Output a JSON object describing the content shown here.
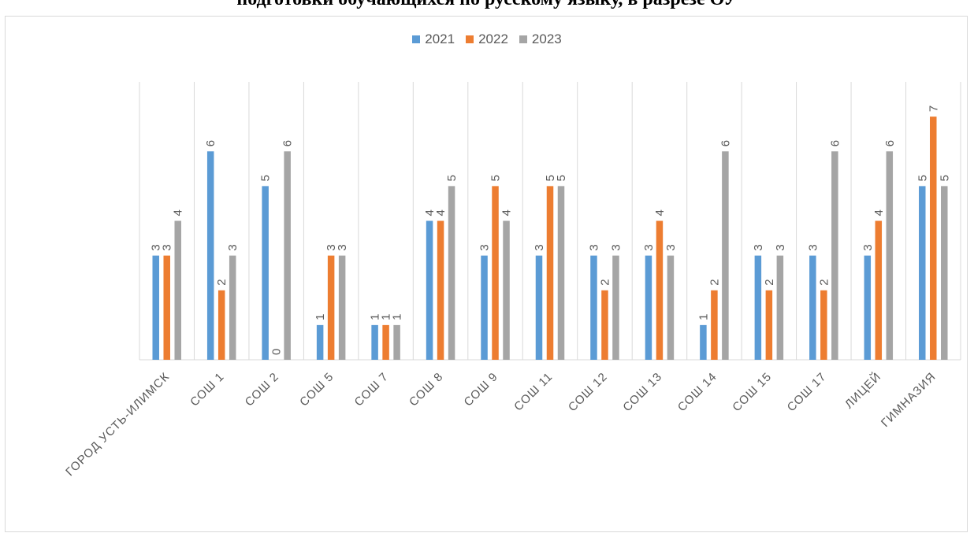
{
  "title": "подготовки обучающихся по русскому языку, в разрезе ОУ",
  "chart_data": {
    "type": "bar",
    "categories": [
      "ГОРОД УСТЬ-ИЛИМСК",
      "СОШ 1",
      "СОШ 2",
      "СОШ 5",
      "СОШ 7",
      "СОШ 8",
      "СОШ 9",
      "СОШ 11",
      "СОШ 12",
      "СОШ 13",
      "СОШ 14",
      "СОШ 15",
      "СОШ 17",
      "ЛИЦЕЙ",
      "ГИМНАЗИЯ"
    ],
    "series": [
      {
        "name": "2021",
        "color": "#5b9bd5",
        "values": [
          3,
          6,
          5,
          1,
          1,
          4,
          3,
          3,
          3,
          3,
          1,
          3,
          3,
          3,
          5
        ]
      },
      {
        "name": "2022",
        "color": "#ed7d31",
        "values": [
          3,
          2,
          0,
          3,
          1,
          4,
          5,
          5,
          2,
          4,
          2,
          2,
          2,
          4,
          7
        ]
      },
      {
        "name": "2023",
        "color": "#a5a5a5",
        "values": [
          4,
          3,
          6,
          3,
          1,
          5,
          4,
          5,
          3,
          3,
          6,
          3,
          6,
          6,
          5
        ]
      }
    ],
    "ylim": [
      0,
      8
    ],
    "grid": "vertical category separators",
    "legend": "top"
  }
}
